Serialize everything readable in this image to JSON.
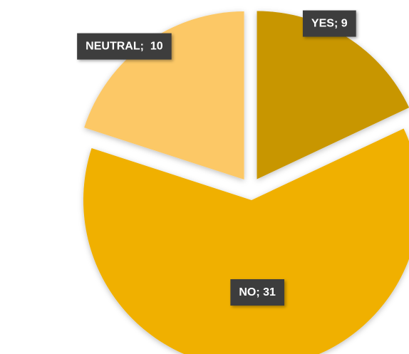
{
  "chart_data": {
    "type": "pie",
    "categories": [
      "YES",
      "NO",
      "NEUTRAL"
    ],
    "values": [
      9,
      31,
      10
    ],
    "data_labels": [
      "YES; 9",
      "NO; 31",
      "NEUTRAL;  10"
    ],
    "colors": [
      "#c89600",
      "#f0b000",
      "#fcc866"
    ],
    "label_background": "#3d3d3d",
    "label_text_color": "#ffffff",
    "exploded": true,
    "legend": "none",
    "title": ""
  }
}
